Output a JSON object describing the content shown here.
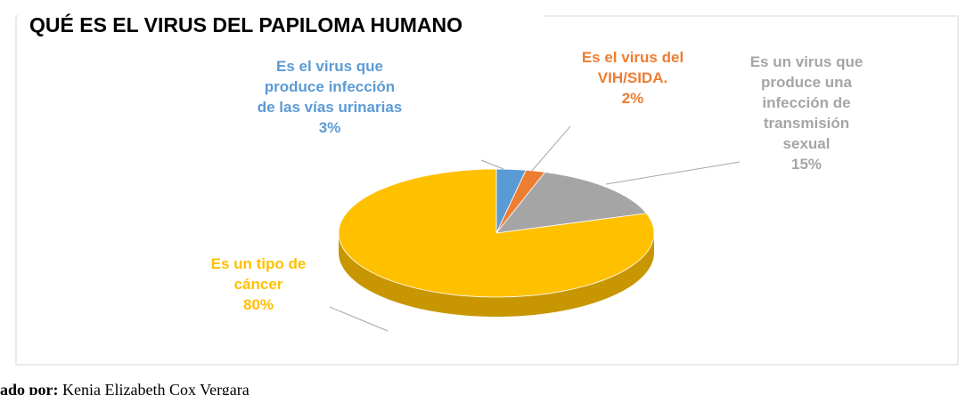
{
  "chart_data": {
    "type": "pie3d",
    "title": "QUÉ ES EL VIRUS DEL PAPILOMA HUMANO",
    "categories": [
      "Es el virus que produce infección de las vías urinarias",
      "Es el virus del VIH/SIDA.",
      "Es un virus que produce una infección de transmisión sexual",
      "Es un tipo de cáncer"
    ],
    "values": [
      3,
      2,
      15,
      80
    ],
    "value_labels": [
      "3%",
      "2%",
      "15%",
      "80%"
    ],
    "colors": [
      "#5b9bd5",
      "#ed7d31",
      "#a5a5a5",
      "#ffc000"
    ]
  },
  "footer": {
    "label": "ado por:",
    "text": "Kenia Elizabeth Cox Vergara"
  }
}
